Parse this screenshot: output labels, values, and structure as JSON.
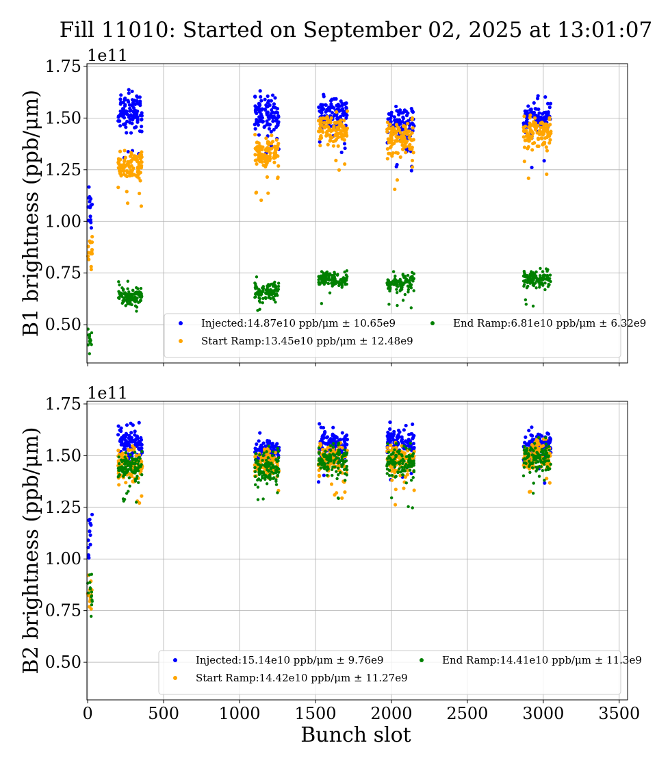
{
  "chart_data": {
    "type": "scatter",
    "title": "Fill 11010: Started on September 02, 2025 at 13:01:07",
    "xlabel": "Bunch slot",
    "xlim": [
      -5,
      3555
    ],
    "xticks": [
      "0",
      "500",
      "1000",
      "1500",
      "2000",
      "2500",
      "3000",
      "3500"
    ],
    "grid": true,
    "colors": {
      "Injected": "#0000ff",
      "Start Ramp": "#ffa500",
      "End Ramp": "#008000"
    },
    "panels": [
      {
        "ylabel": "B1 brightness (ppb/μm)",
        "offset_label": "1e11",
        "ylim": [
          0.315,
          1.763
        ],
        "yticks": [
          "0.50",
          "0.75",
          "1.00",
          "1.25",
          "1.50",
          "1.75"
        ],
        "legend_placement": "lower-right",
        "legend": [
          {
            "series": "Injected",
            "text": "Injected:14.87e10 ppb/μm ± 10.65e9"
          },
          {
            "series": "Start Ramp",
            "text": "Start Ramp:13.45e10 ppb/μm ± 12.48e9"
          },
          {
            "series": "End Ramp",
            "text": "End Ramp:6.81e10 ppb/μm ± 6.32e9"
          }
        ],
        "clusters": [
          {
            "x": [
              0,
              30
            ],
            "Injected": [
              1.08,
              0.1
            ],
            "Start Ramp": [
              0.87,
              0.07
            ],
            "End Ramp": [
              0.43,
              0.03
            ]
          },
          {
            "x": [
              200,
              360
            ],
            "Injected": [
              1.53,
              0.06
            ],
            "Start Ramp": [
              1.27,
              0.05
            ],
            "End Ramp": [
              0.64,
              0.03
            ]
          },
          {
            "x": [
              1100,
              1260
            ],
            "Injected": [
              1.52,
              0.06
            ],
            "Start Ramp": [
              1.33,
              0.06
            ],
            "End Ramp": [
              0.66,
              0.03
            ]
          },
          {
            "x": [
              1520,
              1710
            ],
            "Injected": [
              1.52,
              0.05
            ],
            "Start Ramp": [
              1.45,
              0.05
            ],
            "End Ramp": [
              0.72,
              0.03
            ]
          },
          {
            "x": [
              1970,
              2150
            ],
            "Injected": [
              1.47,
              0.06
            ],
            "Start Ramp": [
              1.4,
              0.06
            ],
            "End Ramp": [
              0.7,
              0.03
            ]
          },
          {
            "x": [
              2870,
              3050
            ],
            "Injected": [
              1.49,
              0.06
            ],
            "Start Ramp": [
              1.43,
              0.06
            ],
            "End Ramp": [
              0.72,
              0.03
            ]
          }
        ]
      },
      {
        "ylabel": "B2 brightness (ppb/μm)",
        "offset_label": "1e11",
        "ylim": [
          0.318,
          1.763
        ],
        "yticks": [
          "0.50",
          "0.75",
          "1.00",
          "1.25",
          "1.50",
          "1.75"
        ],
        "legend_placement": "lower-right",
        "legend": [
          {
            "series": "Injected",
            "text": "Injected:15.14e10 ppb/μm ± 9.76e9"
          },
          {
            "series": "Start Ramp",
            "text": "Start Ramp:14.42e10 ppb/μm ± 11.27e9"
          },
          {
            "series": "End Ramp",
            "text": "End Ramp:14.41e10 ppb/μm ± 11.3e9"
          }
        ],
        "clusters": [
          {
            "x": [
              0,
              30
            ],
            "Injected": [
              1.12,
              0.1
            ],
            "Start Ramp": [
              0.85,
              0.06
            ],
            "End Ramp": [
              0.85,
              0.06
            ]
          },
          {
            "x": [
              200,
              360
            ],
            "Injected": [
              1.56,
              0.05
            ],
            "Start Ramp": [
              1.46,
              0.05
            ],
            "End Ramp": [
              1.45,
              0.05
            ]
          },
          {
            "x": [
              1100,
              1260
            ],
            "Injected": [
              1.52,
              0.05
            ],
            "Start Ramp": [
              1.45,
              0.05
            ],
            "End Ramp": [
              1.44,
              0.05
            ]
          },
          {
            "x": [
              1520,
              1710
            ],
            "Injected": [
              1.55,
              0.05
            ],
            "Start Ramp": [
              1.48,
              0.05
            ],
            "End Ramp": [
              1.47,
              0.05
            ]
          },
          {
            "x": [
              1970,
              2150
            ],
            "Injected": [
              1.56,
              0.05
            ],
            "Start Ramp": [
              1.48,
              0.05
            ],
            "End Ramp": [
              1.47,
              0.05
            ]
          },
          {
            "x": [
              2870,
              3050
            ],
            "Injected": [
              1.55,
              0.05
            ],
            "Start Ramp": [
              1.5,
              0.05
            ],
            "End Ramp": [
              1.49,
              0.05
            ]
          }
        ]
      }
    ]
  }
}
